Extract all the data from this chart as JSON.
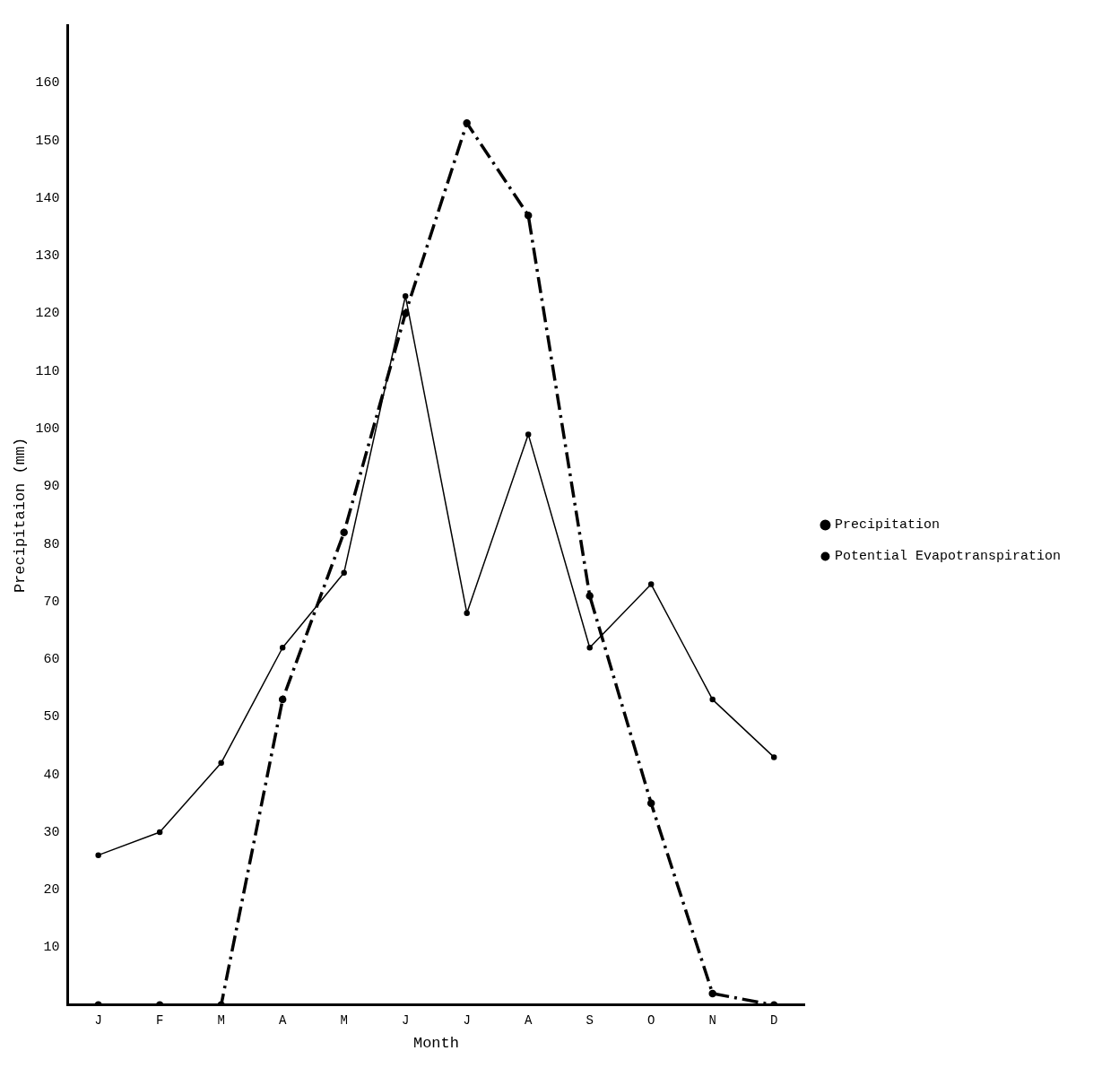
{
  "chart_data": {
    "type": "line",
    "xlabel": "Month",
    "ylabel": "Precipitaion (mm)",
    "categories": [
      "J",
      "F",
      "M",
      "A",
      "M",
      "J",
      "J",
      "A",
      "S",
      "O",
      "N",
      "D"
    ],
    "series": [
      {
        "name": "Precipitation",
        "color": "#000000",
        "line_style": "dashed",
        "values": [
          0,
          0,
          0,
          53,
          82,
          120,
          153,
          137,
          71,
          35,
          2,
          0
        ]
      },
      {
        "name": "Potential Evapotranspiration",
        "color": "#000000",
        "line_style": "solid",
        "values": [
          26,
          30,
          42,
          62,
          75,
          123,
          68,
          99,
          62,
          73,
          53,
          43
        ]
      }
    ],
    "ylim": [
      0,
      170
    ],
    "yticks": [
      10,
      20,
      30,
      40,
      50,
      60,
      70,
      80,
      90,
      100,
      110,
      120,
      130,
      140,
      150,
      160
    ],
    "grid": false,
    "legend": "right",
    "marker": "circle"
  }
}
